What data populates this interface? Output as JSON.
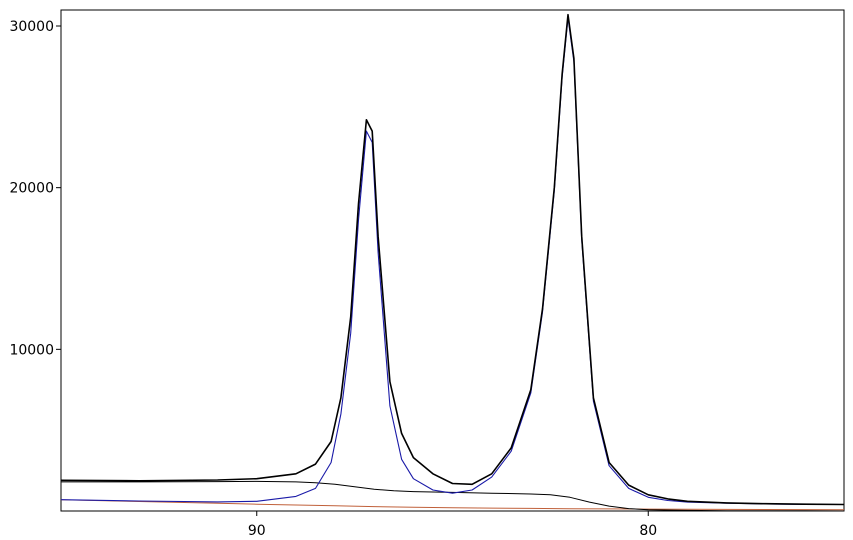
{
  "chart_data": {
    "type": "line",
    "title": "",
    "xlabel": "",
    "ylabel": "",
    "x_reversed": true,
    "xlim": [
      95,
      75
    ],
    "ylim": [
      0,
      30000
    ],
    "grid": false,
    "x_ticks": [
      90,
      80
    ],
    "x_tick_labels": [
      "90",
      "80"
    ],
    "y_ticks": [
      10000,
      20000,
      30000
    ],
    "y_tick_labels": [
      "10000",
      "20000",
      "30000"
    ],
    "colors": {
      "observed": "#000000",
      "fit_peak": "#1a1aa8",
      "fit_background": "#000000",
      "baseline": "#c0603a"
    },
    "series": [
      {
        "role": "observed",
        "x": [
          95,
          93,
          91,
          90,
          89,
          88.5,
          88.1,
          87.85,
          87.6,
          87.4,
          87.2,
          87.05,
          86.9,
          86.6,
          86.3,
          86,
          85.5,
          85,
          84.5,
          84,
          83.5,
          83,
          82.7,
          82.4,
          82.2,
          82.05,
          81.9,
          81.7,
          81.4,
          81,
          80.5,
          80,
          79.5,
          79,
          78,
          77,
          76,
          75
        ],
        "y": [
          1900,
          1870,
          1920,
          2000,
          2300,
          2900,
          4300,
          7000,
          12000,
          19000,
          24200,
          23500,
          17000,
          8000,
          4800,
          3300,
          2300,
          1700,
          1650,
          2300,
          3900,
          7500,
          12500,
          20000,
          27000,
          30700,
          28000,
          17000,
          7000,
          3000,
          1600,
          1000,
          750,
          600,
          500,
          450,
          420,
          400
        ]
      },
      {
        "role": "fit_peak",
        "x": [
          95,
          93,
          91,
          90,
          89,
          88.5,
          88.1,
          87.85,
          87.6,
          87.4,
          87.2,
          87.05,
          86.9,
          86.6,
          86.3,
          86,
          85.5,
          85,
          84.5,
          84,
          83.5,
          83,
          82.7,
          82.4,
          82.2,
          82.05,
          81.9,
          81.7,
          81.4,
          81,
          80.5,
          80,
          79.5,
          79,
          78,
          77,
          76,
          75
        ],
        "y": [
          700,
          620,
          560,
          600,
          900,
          1400,
          3000,
          6000,
          11000,
          18000,
          23500,
          22800,
          16000,
          6500,
          3200,
          2000,
          1300,
          1100,
          1300,
          2100,
          3700,
          7300,
          12300,
          19800,
          26800,
          30500,
          27800,
          16800,
          6800,
          2800,
          1400,
          850,
          650,
          550,
          480,
          440,
          410,
          400
        ]
      },
      {
        "role": "fit_background",
        "x": [
          95,
          93,
          91,
          90,
          89,
          88.5,
          88,
          87.5,
          87,
          86.5,
          86,
          85,
          84,
          83,
          82.5,
          82,
          81.5,
          81,
          80.5,
          80,
          79,
          78,
          76,
          75
        ],
        "y": [
          1800,
          1800,
          1820,
          1830,
          1800,
          1750,
          1650,
          1500,
          1350,
          1250,
          1200,
          1150,
          1100,
          1050,
          1000,
          850,
          550,
          300,
          150,
          80,
          40,
          20,
          10,
          0
        ]
      },
      {
        "role": "baseline",
        "x": [
          95,
          93,
          91,
          90,
          89,
          88,
          87,
          86,
          85,
          84,
          83,
          82,
          81,
          80,
          79,
          78,
          77,
          76,
          75
        ],
        "y": [
          700,
          590,
          480,
          420,
          370,
          320,
          270,
          230,
          200,
          180,
          160,
          145,
          130,
          120,
          110,
          100,
          90,
          85,
          80
        ]
      }
    ]
  }
}
